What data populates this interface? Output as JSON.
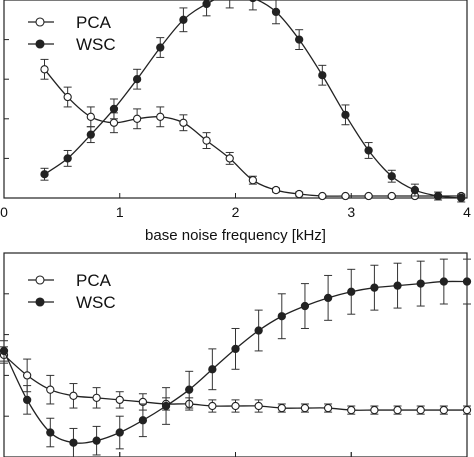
{
  "chart_data": [
    {
      "type": "line",
      "xlabel": "base noise frequency  [kHz]",
      "xlim": [
        0,
        4
      ],
      "ylim": [
        0,
        1
      ],
      "x_ticks": [
        "0",
        "1",
        "2",
        "3",
        "4"
      ],
      "grid": false,
      "legend": {
        "position": "top-left",
        "entries": [
          "PCA",
          "WSC"
        ]
      },
      "series": [
        {
          "name": "PCA",
          "marker": "open-circle",
          "x": [
            0.35,
            0.55,
            0.75,
            0.95,
            1.15,
            1.35,
            1.55,
            1.75,
            1.95,
            2.15,
            2.35,
            2.55,
            2.75,
            2.95,
            3.15,
            3.35,
            3.55,
            3.75,
            3.95
          ],
          "y": [
            0.65,
            0.51,
            0.41,
            0.38,
            0.4,
            0.41,
            0.38,
            0.29,
            0.2,
            0.09,
            0.04,
            0.02,
            0.01,
            0.01,
            0.01,
            0.01,
            0.01,
            0.01,
            0.01
          ],
          "error": [
            0.05,
            0.05,
            0.05,
            0.05,
            0.05,
            0.05,
            0.04,
            0.04,
            0.03,
            0.02,
            0.01,
            0.01,
            0.005,
            0.005,
            0.005,
            0.005,
            0.005,
            0.005,
            0.005
          ]
        },
        {
          "name": "WSC",
          "marker": "filled-circle",
          "x": [
            0.35,
            0.55,
            0.75,
            0.95,
            1.15,
            1.35,
            1.55,
            1.75,
            1.95,
            2.15,
            2.35,
            2.55,
            2.75,
            2.95,
            3.15,
            3.35,
            3.55,
            3.75,
            3.95
          ],
          "y": [
            0.12,
            0.2,
            0.32,
            0.45,
            0.6,
            0.76,
            0.9,
            0.98,
            1.03,
            1.01,
            0.94,
            0.8,
            0.62,
            0.42,
            0.24,
            0.11,
            0.04,
            0.01,
            0.0
          ],
          "error": [
            0.03,
            0.04,
            0.04,
            0.05,
            0.05,
            0.05,
            0.06,
            0.06,
            0.07,
            0.06,
            0.06,
            0.05,
            0.05,
            0.05,
            0.04,
            0.03,
            0.03,
            0.02,
            0.02
          ]
        }
      ]
    },
    {
      "type": "line",
      "xlim": [
        0,
        4
      ],
      "ylim": [
        0,
        1
      ],
      "grid": false,
      "legend": {
        "position": "top-left",
        "entries": [
          "PCA",
          "WSC"
        ]
      },
      "series": [
        {
          "name": "PCA",
          "marker": "open-circle",
          "x": [
            0.0,
            0.2,
            0.4,
            0.6,
            0.8,
            1.0,
            1.2,
            1.4,
            1.6,
            1.8,
            2.0,
            2.2,
            2.4,
            2.6,
            2.8,
            3.0,
            3.2,
            3.4,
            3.6,
            3.8,
            4.0
          ],
          "y": [
            0.5,
            0.4,
            0.33,
            0.3,
            0.29,
            0.28,
            0.27,
            0.26,
            0.26,
            0.25,
            0.25,
            0.25,
            0.24,
            0.24,
            0.24,
            0.23,
            0.23,
            0.23,
            0.23,
            0.23,
            0.23
          ],
          "error": [
            0.04,
            0.08,
            0.07,
            0.06,
            0.05,
            0.04,
            0.04,
            0.03,
            0.03,
            0.03,
            0.03,
            0.03,
            0.02,
            0.02,
            0.02,
            0.02,
            0.02,
            0.02,
            0.02,
            0.02,
            0.02
          ]
        },
        {
          "name": "WSC",
          "marker": "filled-circle",
          "x": [
            0.0,
            0.2,
            0.4,
            0.6,
            0.8,
            1.0,
            1.2,
            1.4,
            1.6,
            1.8,
            2.0,
            2.2,
            2.4,
            2.6,
            2.8,
            3.0,
            3.2,
            3.4,
            3.6,
            3.8,
            4.0
          ],
          "y": [
            0.52,
            0.28,
            0.12,
            0.07,
            0.08,
            0.12,
            0.18,
            0.25,
            0.33,
            0.43,
            0.53,
            0.62,
            0.69,
            0.74,
            0.78,
            0.81,
            0.83,
            0.84,
            0.85,
            0.86,
            0.86
          ],
          "error": [
            0.05,
            0.07,
            0.07,
            0.07,
            0.07,
            0.08,
            0.08,
            0.09,
            0.09,
            0.1,
            0.1,
            0.1,
            0.11,
            0.11,
            0.11,
            0.11,
            0.11,
            0.11,
            0.11,
            0.11,
            0.11
          ]
        }
      ]
    }
  ]
}
